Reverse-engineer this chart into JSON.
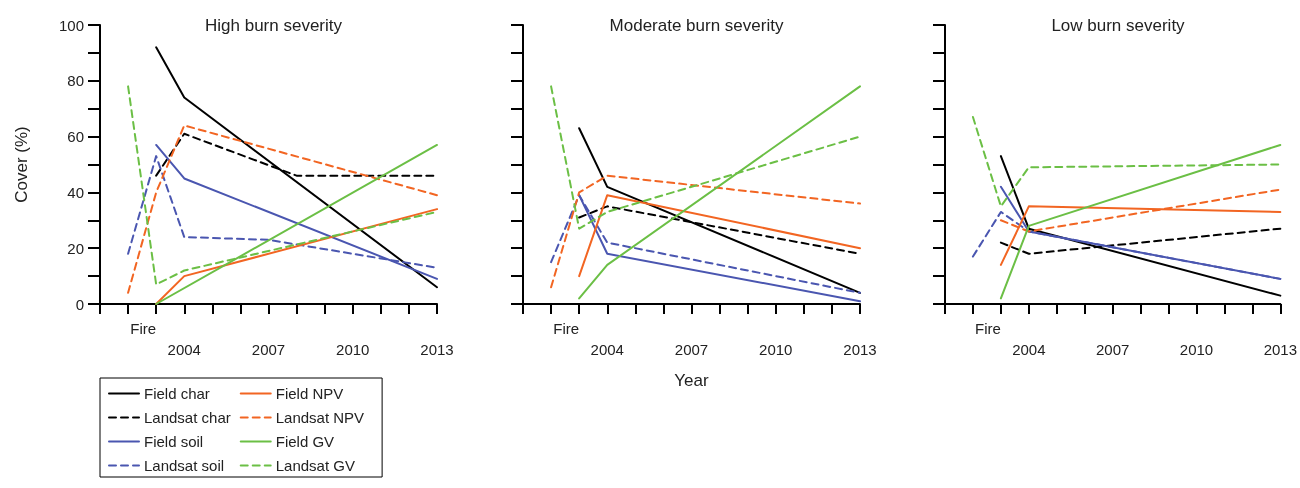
{
  "chart_data": [
    {
      "type": "line",
      "title": "High burn severity",
      "ylabel": "Cover (%)",
      "xlim": [
        2001,
        2013
      ],
      "ylim": [
        0,
        100
      ],
      "annotations": [
        "Fire"
      ],
      "xticks": [
        {
          "value": 2001,
          "label": null
        },
        {
          "value": 2002,
          "label": null
        },
        {
          "value": 2003,
          "label": null
        },
        2004,
        {
          "value": 2005,
          "label": null
        },
        {
          "value": 2006,
          "label": null
        },
        2007,
        {
          "value": 2008,
          "label": null
        },
        {
          "value": 2009,
          "label": null
        },
        2010,
        {
          "value": 2011,
          "label": null
        },
        {
          "value": 2012,
          "label": null
        },
        2013
      ],
      "yticks": [
        0,
        {
          "value": 10,
          "label": null
        },
        20,
        {
          "value": 30,
          "label": null
        },
        40,
        {
          "value": 50,
          "label": null
        },
        60,
        {
          "value": 70,
          "label": null
        },
        80,
        {
          "value": 90,
          "label": null
        },
        100
      ],
      "grid": false,
      "marker": "none",
      "legend": "bottom left",
      "series": [
        {
          "name": "Field char",
          "color": "#000000",
          "line_style": "solid",
          "x": [
            2003,
            2004,
            2013
          ],
          "values": [
            92,
            74,
            6
          ]
        },
        {
          "name": "Landsat char",
          "color": "#000000",
          "line_style": "dashed",
          "x": [
            2003,
            2004,
            2008,
            2013
          ],
          "values": [
            46,
            61,
            46,
            46
          ]
        },
        {
          "name": "Field soil",
          "color": "#4a56b0",
          "line_style": "solid",
          "x": [
            2003,
            2004,
            2013
          ],
          "values": [
            57,
            45,
            9
          ]
        },
        {
          "name": "Landsat soil",
          "color": "#4a56b0",
          "line_style": "dashed",
          "x": [
            2002,
            2003,
            2004,
            2007,
            2013
          ],
          "values": [
            18,
            53,
            24,
            23,
            13
          ]
        },
        {
          "name": "Field NPV",
          "color": "#f26522",
          "line_style": "solid",
          "x": [
            2003,
            2004,
            2013
          ],
          "values": [
            0,
            10,
            34
          ]
        },
        {
          "name": "Landsat NPV",
          "color": "#f26522",
          "line_style": "dashed",
          "x": [
            2002,
            2003,
            2004,
            2013
          ],
          "values": [
            4,
            40,
            64,
            39
          ]
        },
        {
          "name": "Field GV",
          "color": "#6bbf45",
          "line_style": "solid",
          "x": [
            2003,
            2013
          ],
          "values": [
            0,
            57
          ]
        },
        {
          "name": "Landsat GV",
          "color": "#6bbf45",
          "line_style": "dashed",
          "x": [
            2002,
            2003,
            2004,
            2013
          ],
          "values": [
            78,
            7,
            12,
            33
          ]
        }
      ]
    },
    {
      "type": "line",
      "title": "Moderate burn severity",
      "xlabel": "Year",
      "xlim": [
        2001,
        2013
      ],
      "ylim": [
        0,
        100
      ],
      "tick_labels": "x",
      "annotations": [
        "Fire"
      ],
      "xticks": [
        {
          "value": 2001,
          "label": null
        },
        {
          "value": 2002,
          "label": null
        },
        {
          "value": 2003,
          "label": null
        },
        2004,
        {
          "value": 2005,
          "label": null
        },
        {
          "value": 2006,
          "label": null
        },
        2007,
        {
          "value": 2008,
          "label": null
        },
        {
          "value": 2009,
          "label": null
        },
        2010,
        {
          "value": 2011,
          "label": null
        },
        {
          "value": 2012,
          "label": null
        },
        2013
      ],
      "yticks": [
        0,
        {
          "value": 10,
          "label": null
        },
        20,
        {
          "value": 30,
          "label": null
        },
        40,
        {
          "value": 50,
          "label": null
        },
        60,
        {
          "value": 70,
          "label": null
        },
        80,
        {
          "value": 90,
          "label": null
        },
        100
      ],
      "grid": false,
      "marker": "none",
      "series": [
        {
          "color": "#000000",
          "line_style": "solid",
          "x": [
            2003,
            2004,
            2013
          ],
          "values": [
            63,
            42,
            4
          ]
        },
        {
          "color": "#000000",
          "line_style": "dashed",
          "x": [
            2003,
            2004,
            2013
          ],
          "values": [
            31,
            35,
            18
          ]
        },
        {
          "color": "#4a56b0",
          "line_style": "solid",
          "x": [
            2003,
            2004,
            2013
          ],
          "values": [
            39,
            18,
            1
          ]
        },
        {
          "color": "#4a56b0",
          "line_style": "dashed",
          "x": [
            2002,
            2003,
            2004,
            2013
          ],
          "values": [
            15,
            39,
            22,
            4
          ]
        },
        {
          "color": "#f26522",
          "line_style": "solid",
          "x": [
            2003,
            2004,
            2013
          ],
          "values": [
            10,
            39,
            20
          ]
        },
        {
          "color": "#f26522",
          "line_style": "dashed",
          "x": [
            2002,
            2003,
            2004,
            2013
          ],
          "values": [
            6,
            40,
            46,
            36
          ]
        },
        {
          "color": "#6bbf45",
          "line_style": "solid",
          "x": [
            2003,
            2004,
            2013
          ],
          "values": [
            2,
            14,
            78
          ]
        },
        {
          "color": "#6bbf45",
          "line_style": "dashed",
          "x": [
            2002,
            2003,
            2004,
            2013
          ],
          "values": [
            78,
            27,
            33,
            60
          ]
        }
      ]
    },
    {
      "type": "line",
      "title": "Low burn severity",
      "xlim": [
        2001,
        2013
      ],
      "ylim": [
        0,
        100
      ],
      "tick_labels": "x",
      "annotations": [
        "Fire"
      ],
      "xticks": [
        {
          "value": 2001,
          "label": null
        },
        {
          "value": 2002,
          "label": null
        },
        {
          "value": 2003,
          "label": null
        },
        2004,
        {
          "value": 2005,
          "label": null
        },
        {
          "value": 2006,
          "label": null
        },
        2007,
        {
          "value": 2008,
          "label": null
        },
        {
          "value": 2009,
          "label": null
        },
        2010,
        {
          "value": 2011,
          "label": null
        },
        {
          "value": 2012,
          "label": null
        },
        2013
      ],
      "yticks": [
        0,
        {
          "value": 10,
          "label": null
        },
        20,
        {
          "value": 30,
          "label": null
        },
        40,
        {
          "value": 50,
          "label": null
        },
        60,
        {
          "value": 70,
          "label": null
        },
        80,
        {
          "value": 90,
          "label": null
        },
        100
      ],
      "grid": false,
      "marker": "none",
      "series": [
        {
          "color": "#000000",
          "line_style": "solid",
          "x": [
            2003,
            2004,
            2013
          ],
          "values": [
            53,
            27,
            3
          ]
        },
        {
          "color": "#000000",
          "line_style": "dashed",
          "x": [
            2003,
            2004,
            2013
          ],
          "values": [
            22,
            18,
            27
          ]
        },
        {
          "color": "#4a56b0",
          "line_style": "solid",
          "x": [
            2003,
            2004,
            2013
          ],
          "values": [
            42,
            26,
            9
          ]
        },
        {
          "color": "#4a56b0",
          "line_style": "dashed",
          "x": [
            2002,
            2003,
            2004,
            2013
          ],
          "values": [
            17,
            33,
            26,
            9
          ]
        },
        {
          "color": "#f26522",
          "line_style": "solid",
          "x": [
            2003,
            2004,
            2013
          ],
          "values": [
            14,
            35,
            33
          ]
        },
        {
          "color": "#f26522",
          "line_style": "dashed",
          "x": [
            2003,
            2004,
            2013
          ],
          "values": [
            30,
            26,
            41
          ]
        },
        {
          "color": "#6bbf45",
          "line_style": "solid",
          "x": [
            2003,
            2004,
            2013
          ],
          "values": [
            2,
            28,
            57
          ]
        },
        {
          "color": "#6bbf45",
          "line_style": "dashed",
          "x": [
            2002,
            2003,
            2004,
            2013
          ],
          "values": [
            67,
            35,
            49,
            50
          ]
        }
      ]
    }
  ]
}
